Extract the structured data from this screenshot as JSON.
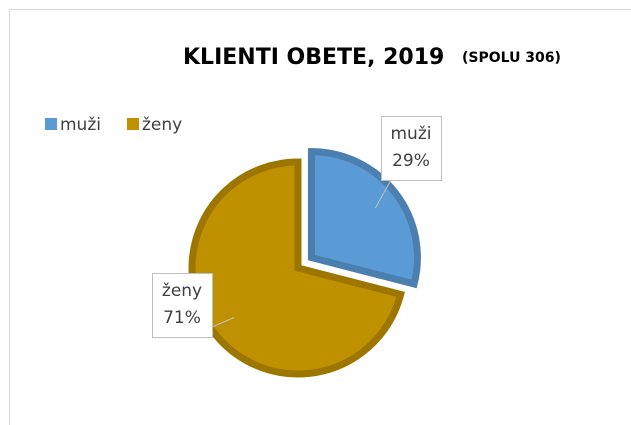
{
  "chart_data": {
    "type": "pie",
    "title": "KLIENTI OBETE, 2019",
    "subtitle": "(SPOLU 306)",
    "categories": [
      "muži",
      "ženy"
    ],
    "values": [
      29,
      71
    ],
    "value_labels": [
      "29%",
      "71%"
    ],
    "colors": [
      "#5b9bd5",
      "#bf9000"
    ],
    "explode": [
      true,
      false
    ],
    "legend": "top-left"
  }
}
